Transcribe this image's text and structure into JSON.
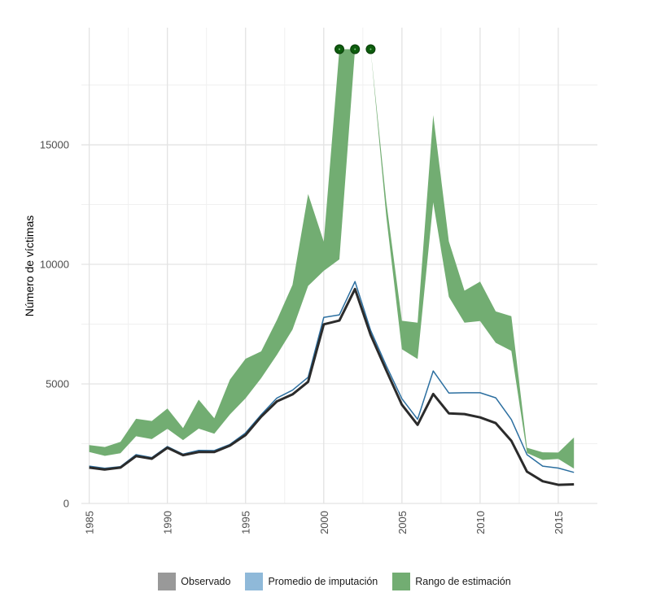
{
  "chart_data": {
    "type": "area",
    "title": "",
    "xlabel": "",
    "ylabel": "Número de víctimas",
    "xlim": [
      1984.5,
      2017.5
    ],
    "ylim": [
      0,
      20000
    ],
    "x_ticks": [
      "1985",
      "1990",
      "1995",
      "2000",
      "2005",
      "2010",
      "2015"
    ],
    "y_ticks": [
      "0",
      "5000",
      "10000",
      "15000"
    ],
    "grid": true,
    "legend_position": "bottom",
    "x": [
      1985,
      1986,
      1987,
      1988,
      1989,
      1990,
      1991,
      1992,
      1993,
      1994,
      1995,
      1996,
      1997,
      1998,
      1999,
      2000,
      2001,
      2002,
      2003,
      2004,
      2005,
      2006,
      2007,
      2008,
      2009,
      2010,
      2011,
      2012,
      2013,
      2014,
      2015,
      2016
    ],
    "series": [
      {
        "name": "Observado",
        "color": "#2b2b2b",
        "values": [
          1500,
          1420,
          1500,
          1980,
          1870,
          2330,
          2020,
          2150,
          2150,
          2420,
          2860,
          3630,
          4270,
          4560,
          5090,
          7490,
          7650,
          8970,
          7050,
          5570,
          4130,
          3290,
          4580,
          3770,
          3740,
          3600,
          3360,
          2620,
          1330,
          930,
          780,
          800
        ]
      },
      {
        "name": "Promedio de imputación",
        "color": "#2c6fa0",
        "values": [
          1560,
          1470,
          1540,
          2040,
          1920,
          2380,
          2060,
          2220,
          2210,
          2470,
          2950,
          3710,
          4410,
          4740,
          5280,
          7780,
          7890,
          9280,
          7240,
          5760,
          4380,
          3520,
          5540,
          4620,
          4630,
          4630,
          4420,
          3510,
          2040,
          1560,
          1480,
          1300
        ]
      },
      {
        "name": "Rango de estimación",
        "color": "#72ad72",
        "lower": [
          2150,
          1990,
          2100,
          2810,
          2690,
          3120,
          2650,
          3130,
          2920,
          3720,
          4400,
          5240,
          6210,
          7270,
          9100,
          9730,
          10210,
          19000,
          19000,
          12010,
          6450,
          6040,
          12590,
          8640,
          7560,
          7630,
          6720,
          6380,
          2110,
          1820,
          1860,
          1460
        ],
        "upper": [
          2440,
          2360,
          2580,
          3540,
          3450,
          3970,
          3150,
          4340,
          3560,
          5180,
          6050,
          6360,
          7670,
          9140,
          12940,
          10950,
          19000,
          19000,
          19000,
          12630,
          7640,
          7560,
          16240,
          10960,
          8900,
          9280,
          8030,
          7830,
          2330,
          2140,
          2130,
          2760
        ]
      }
    ],
    "capped_points": {
      "name": "Rango de estimación",
      "color": "#0d5c0d",
      "x": [
        2001,
        2002,
        2003
      ],
      "y": [
        19000,
        19000,
        19000
      ]
    }
  }
}
